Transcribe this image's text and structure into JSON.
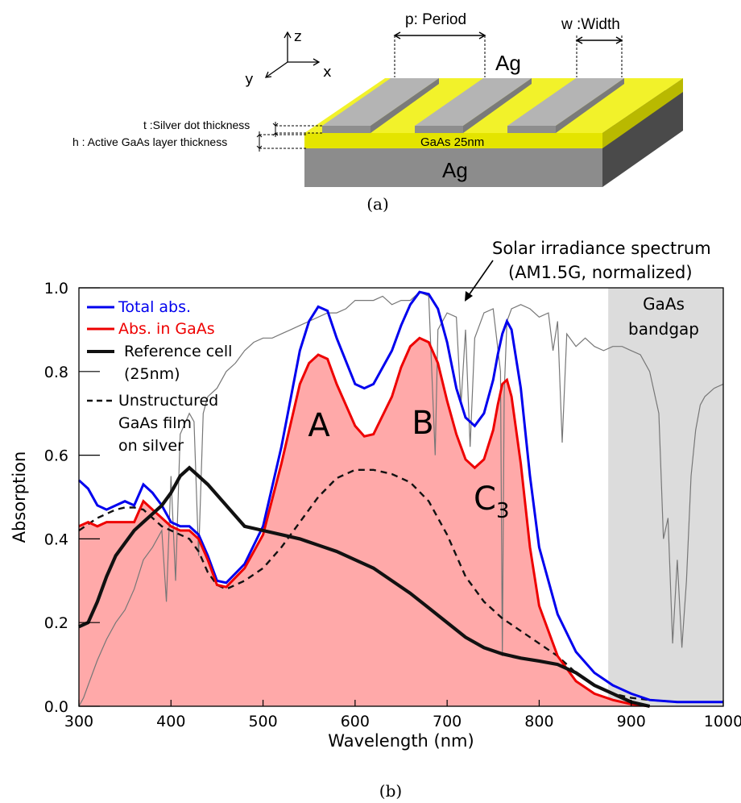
{
  "diagram": {
    "caption": "(a)",
    "axes": {
      "z": "z",
      "y": "y",
      "x": "x"
    },
    "period_label": "p: Period",
    "width_label": "w :Width",
    "ag_top_label": "Ag",
    "ag_bottom_label": "Ag",
    "gaas_label": "GaAs 25nm",
    "t_label": "t :Silver dot thickness",
    "h_label": "h : Active GaAs layer thickness"
  },
  "chart_caption": "(b)",
  "chart_data": {
    "type": "line",
    "xlabel": "Wavelength (nm)",
    "ylabel": "Absorption",
    "xlim": [
      300,
      1000
    ],
    "ylim": [
      0,
      1.0
    ],
    "xticks": [
      300,
      400,
      500,
      600,
      700,
      800,
      900,
      1000
    ],
    "yticks": [
      0.0,
      0.2,
      0.4,
      0.6,
      0.8,
      1.0
    ],
    "xtick_labels": [
      "300",
      "400",
      "500",
      "600",
      "700",
      "800",
      "900",
      "1000"
    ],
    "ytick_labels": [
      "0.0",
      "0.2",
      "0.4",
      "0.6",
      "0.8",
      "1.0"
    ],
    "legend_position": "top-left",
    "series": [
      {
        "name": "Total abs.",
        "color": "#0000ee",
        "style": "solid",
        "x": [
          300,
          310,
          320,
          330,
          340,
          350,
          360,
          370,
          380,
          390,
          400,
          410,
          420,
          430,
          440,
          450,
          460,
          480,
          500,
          520,
          540,
          550,
          560,
          570,
          580,
          600,
          610,
          620,
          640,
          650,
          660,
          670,
          680,
          690,
          700,
          710,
          720,
          730,
          740,
          750,
          755,
          760,
          765,
          770,
          780,
          790,
          800,
          820,
          840,
          860,
          880,
          900,
          920,
          950,
          1000
        ],
        "y": [
          0.54,
          0.52,
          0.48,
          0.47,
          0.48,
          0.49,
          0.48,
          0.53,
          0.51,
          0.48,
          0.44,
          0.43,
          0.43,
          0.41,
          0.36,
          0.3,
          0.295,
          0.34,
          0.43,
          0.62,
          0.85,
          0.92,
          0.955,
          0.945,
          0.88,
          0.77,
          0.76,
          0.77,
          0.85,
          0.91,
          0.96,
          0.99,
          0.985,
          0.95,
          0.87,
          0.76,
          0.69,
          0.67,
          0.7,
          0.78,
          0.84,
          0.89,
          0.92,
          0.9,
          0.76,
          0.55,
          0.38,
          0.22,
          0.13,
          0.08,
          0.05,
          0.03,
          0.015,
          0.01,
          0.01
        ]
      },
      {
        "name": "Abs. in GaAs",
        "color": "#ee0000",
        "style": "solid",
        "fill": "#ffa9a9",
        "x": [
          300,
          310,
          320,
          330,
          340,
          350,
          360,
          370,
          380,
          390,
          400,
          410,
          420,
          430,
          440,
          450,
          460,
          480,
          500,
          520,
          540,
          550,
          560,
          570,
          580,
          600,
          610,
          620,
          640,
          650,
          660,
          670,
          680,
          690,
          700,
          710,
          720,
          730,
          740,
          750,
          755,
          760,
          765,
          770,
          780,
          790,
          800,
          820,
          840,
          860,
          880,
          900,
          920
        ],
        "y": [
          0.43,
          0.44,
          0.43,
          0.44,
          0.44,
          0.44,
          0.44,
          0.49,
          0.47,
          0.45,
          0.43,
          0.42,
          0.42,
          0.4,
          0.35,
          0.29,
          0.285,
          0.33,
          0.41,
          0.58,
          0.77,
          0.82,
          0.84,
          0.83,
          0.77,
          0.67,
          0.645,
          0.65,
          0.74,
          0.81,
          0.86,
          0.88,
          0.87,
          0.82,
          0.73,
          0.65,
          0.59,
          0.57,
          0.59,
          0.66,
          0.72,
          0.77,
          0.78,
          0.74,
          0.58,
          0.38,
          0.24,
          0.12,
          0.06,
          0.03,
          0.015,
          0.005,
          0.0
        ]
      },
      {
        "name": "Reference cell (25nm)",
        "color": "#111111",
        "style": "solid",
        "x": [
          300,
          310,
          320,
          330,
          340,
          350,
          360,
          370,
          380,
          390,
          400,
          410,
          420,
          430,
          440,
          460,
          480,
          500,
          520,
          540,
          560,
          580,
          600,
          620,
          640,
          660,
          680,
          700,
          720,
          740,
          760,
          780,
          800,
          820,
          840,
          860,
          880,
          900,
          920
        ],
        "y": [
          0.19,
          0.2,
          0.25,
          0.31,
          0.36,
          0.39,
          0.42,
          0.44,
          0.46,
          0.48,
          0.51,
          0.55,
          0.57,
          0.55,
          0.53,
          0.48,
          0.43,
          0.42,
          0.41,
          0.4,
          0.385,
          0.37,
          0.35,
          0.33,
          0.3,
          0.27,
          0.235,
          0.2,
          0.165,
          0.14,
          0.125,
          0.115,
          0.108,
          0.1,
          0.08,
          0.05,
          0.03,
          0.01,
          0.0
        ]
      },
      {
        "name": "Unstructured GaAs film on silver",
        "color": "#111111",
        "style": "dashed",
        "x": [
          300,
          320,
          340,
          350,
          360,
          370,
          380,
          390,
          400,
          410,
          420,
          430,
          440,
          450,
          460,
          480,
          500,
          520,
          540,
          560,
          580,
          600,
          620,
          640,
          660,
          680,
          700,
          720,
          740,
          760,
          780,
          800,
          820,
          840,
          860,
          880,
          900,
          920,
          950,
          1000
        ],
        "y": [
          0.42,
          0.45,
          0.47,
          0.475,
          0.475,
          0.47,
          0.45,
          0.43,
          0.42,
          0.41,
          0.4,
          0.37,
          0.32,
          0.29,
          0.28,
          0.3,
          0.33,
          0.38,
          0.44,
          0.5,
          0.545,
          0.565,
          0.565,
          0.555,
          0.535,
          0.49,
          0.41,
          0.31,
          0.25,
          0.21,
          0.18,
          0.15,
          0.12,
          0.08,
          0.05,
          0.03,
          0.02,
          0.015,
          0.01,
          0.01
        ]
      },
      {
        "name": "Solar irradiance spectrum (AM1.5G, normalized)",
        "color": "#777777",
        "style": "solid",
        "x": [
          300,
          305,
          310,
          315,
          320,
          330,
          340,
          350,
          360,
          370,
          380,
          390,
          395,
          400,
          405,
          410,
          420,
          425,
          430,
          435,
          440,
          450,
          460,
          470,
          480,
          490,
          500,
          510,
          520,
          530,
          540,
          550,
          560,
          570,
          580,
          590,
          600,
          610,
          620,
          630,
          640,
          650,
          660,
          670,
          680,
          687,
          690,
          700,
          710,
          715,
          720,
          725,
          730,
          740,
          750,
          758,
          760,
          762,
          765,
          770,
          780,
          790,
          800,
          810,
          815,
          820,
          825,
          830,
          840,
          850,
          860,
          870,
          880,
          890,
          900,
          910,
          920,
          930,
          935,
          940,
          945,
          950,
          955,
          960,
          965,
          970,
          975,
          980,
          990,
          1000
        ],
        "y": [
          0.0,
          0.02,
          0.05,
          0.08,
          0.11,
          0.16,
          0.2,
          0.23,
          0.28,
          0.35,
          0.38,
          0.42,
          0.25,
          0.55,
          0.3,
          0.65,
          0.7,
          0.68,
          0.36,
          0.7,
          0.74,
          0.76,
          0.8,
          0.82,
          0.85,
          0.87,
          0.88,
          0.88,
          0.89,
          0.9,
          0.91,
          0.92,
          0.93,
          0.94,
          0.94,
          0.95,
          0.97,
          0.97,
          0.97,
          0.98,
          0.96,
          0.97,
          0.97,
          0.99,
          0.98,
          0.6,
          0.9,
          0.94,
          0.93,
          0.72,
          0.9,
          0.62,
          0.88,
          0.94,
          0.95,
          0.8,
          0.12,
          0.75,
          0.92,
          0.95,
          0.96,
          0.95,
          0.93,
          0.94,
          0.85,
          0.92,
          0.63,
          0.89,
          0.86,
          0.88,
          0.86,
          0.85,
          0.86,
          0.86,
          0.85,
          0.84,
          0.8,
          0.7,
          0.4,
          0.45,
          0.15,
          0.35,
          0.14,
          0.3,
          0.55,
          0.66,
          0.72,
          0.74,
          0.76,
          0.77
        ]
      }
    ],
    "annotations": {
      "peak_a": "A",
      "peak_b": "B",
      "peak_c_main": "C",
      "peak_c_sub": "3",
      "solar_line1": "Solar irradiance spectrum",
      "solar_line2": "(AM1.5G, normalized)",
      "bandgap_line1": "GaAs",
      "bandgap_line2": "bandgap",
      "bandgap_start": 875
    },
    "legend": {
      "total": "Total abs.",
      "gaas": "Abs. in GaAs",
      "ref_line1": "Reference cell",
      "ref_line2": "(25nm)",
      "unstr_line1": "Unstructured",
      "unstr_line2": "GaAs film",
      "unstr_line3": "on silver"
    }
  }
}
